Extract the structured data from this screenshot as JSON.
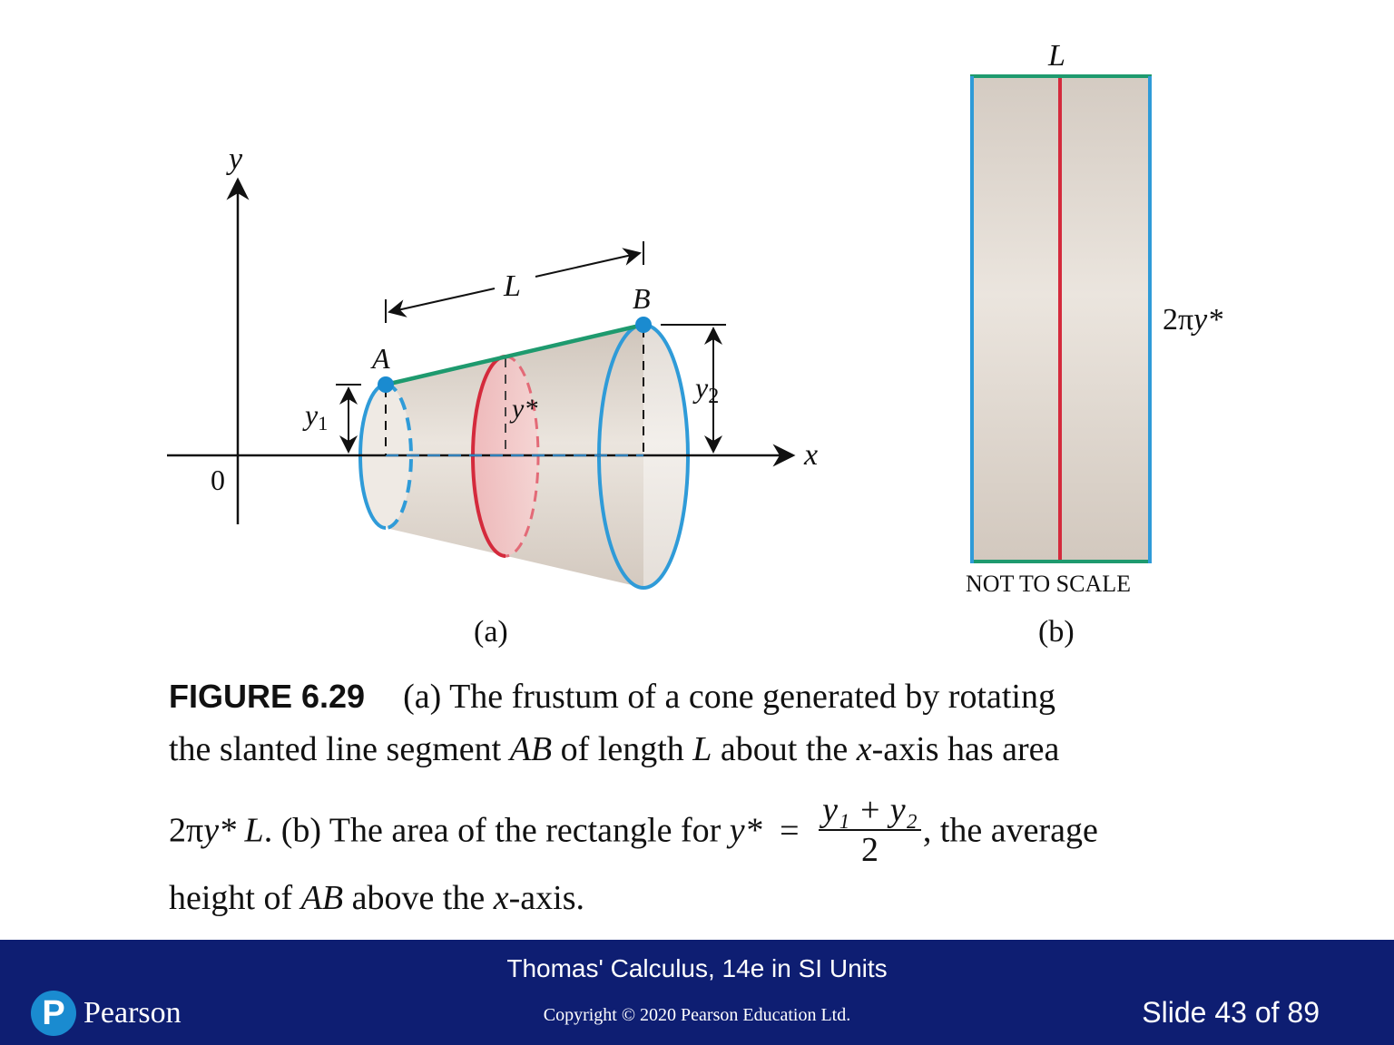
{
  "figure": {
    "panel_a": {
      "axis_y": "y",
      "axis_x": "x",
      "origin": "0",
      "point_a": "A",
      "point_b": "B",
      "length": "L",
      "y1": "y",
      "y1_sub": "1",
      "y2": "y",
      "y2_sub": "2",
      "ystar": "y*",
      "panel_label": "(a)"
    },
    "panel_b": {
      "top_label": "L",
      "side_label_prefix": "2π",
      "side_label_var": "y*",
      "note": "NOT TO SCALE",
      "panel_label": "(b)"
    }
  },
  "caption": {
    "figure_label": "FIGURE 6.29",
    "line1": "(a) The frustum of a cone generated by rotating",
    "line2_a": "the slanted line segment ",
    "line2_ab": "AB",
    "line2_b": " of length ",
    "line2_L": "L",
    "line2_c": " about the ",
    "line2_x": "x",
    "line2_d": "-axis has area",
    "line3_a": "2π",
    "line3_y": "y* L",
    "line3_b": ". (b) The area of the rectangle for ",
    "line3_ystar": "y*",
    "line3_eq": " = ",
    "frac_num": "y₁ + y₂",
    "frac_den": "2",
    "line3_c": ", the average",
    "line4_a": "height of ",
    "line4_ab": "AB",
    "line4_b": " above the ",
    "line4_x": "x",
    "line4_c": "-axis."
  },
  "footer": {
    "title": "Thomas' Calculus, 14e in SI Units",
    "copyright": "Copyright © 2020 Pearson Education Ltd.",
    "slide": "Slide 43 of 89",
    "brand": "Pearson",
    "brand_mark": "P"
  },
  "colors": {
    "footer_bg": "#0e1e72",
    "cone_blue": "#2f9bd8",
    "segment_green": "#1e9a6e",
    "cross_section_red": "#d42a3c",
    "surface_tan": "#dcd3c9"
  }
}
